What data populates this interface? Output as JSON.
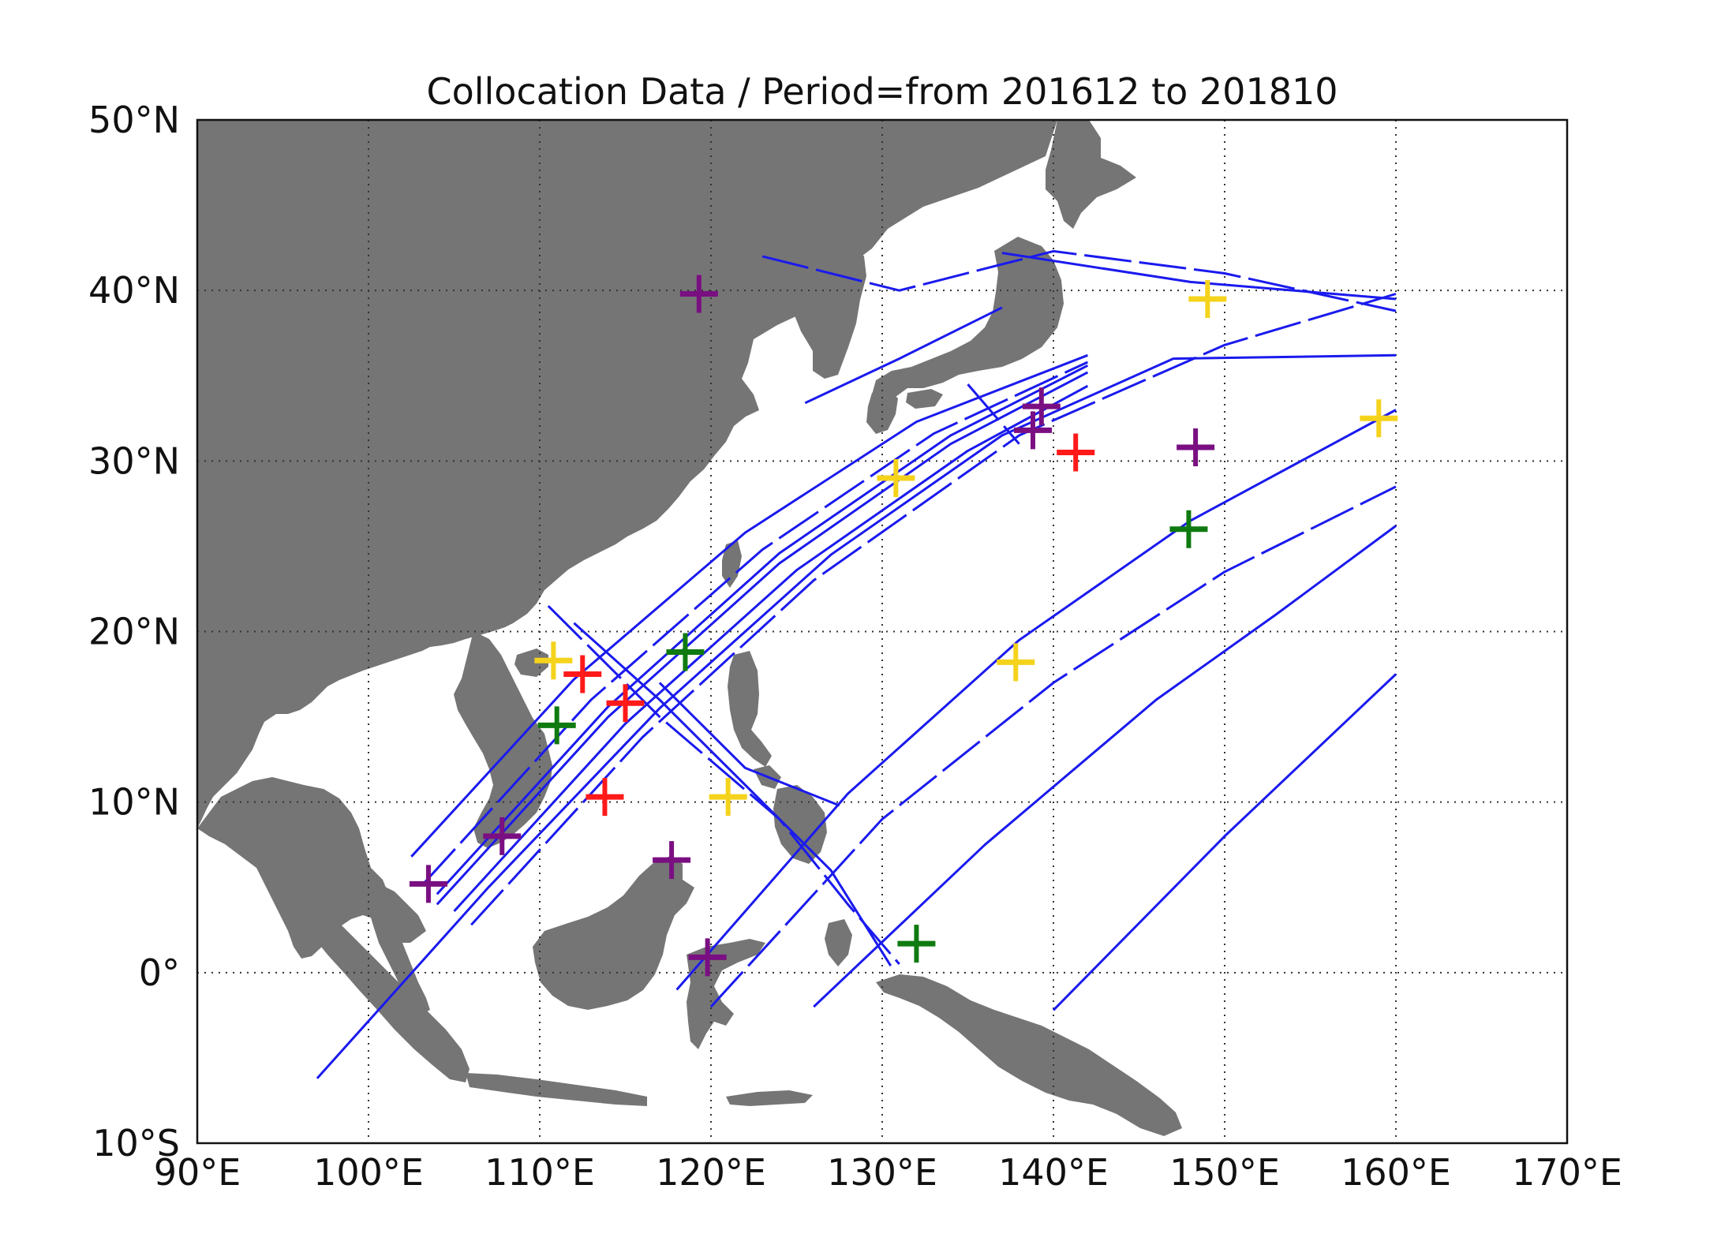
{
  "title": "Collocation Data / Period=from 201612 to 201810",
  "colors": {
    "land": "#757575",
    "ocean": "#ffffff",
    "track": "#1a1aee",
    "grid": "#333333",
    "marker_red": "#ff1a1a",
    "marker_yellow": "#f5d31c",
    "marker_purple": "#7a0f82",
    "marker_green": "#0f7a10"
  },
  "chart_data": {
    "type": "scatter",
    "map_projection": "equirectangular",
    "xlim": [
      90,
      170
    ],
    "ylim": [
      -10,
      50
    ],
    "grid": true,
    "x_ticks": [
      {
        "value": 90,
        "label": "90°E"
      },
      {
        "value": 100,
        "label": "100°E"
      },
      {
        "value": 110,
        "label": "110°E"
      },
      {
        "value": 120,
        "label": "120°E"
      },
      {
        "value": 130,
        "label": "130°E"
      },
      {
        "value": 140,
        "label": "140°E"
      },
      {
        "value": 150,
        "label": "150°E"
      },
      {
        "value": 160,
        "label": "160°E"
      },
      {
        "value": 170,
        "label": "170°E"
      }
    ],
    "y_ticks": [
      {
        "value": -10,
        "label": "10°S"
      },
      {
        "value": 0,
        "label": "0°"
      },
      {
        "value": 10,
        "label": "10°N"
      },
      {
        "value": 20,
        "label": "20°N"
      },
      {
        "value": 30,
        "label": "30°N"
      },
      {
        "value": 40,
        "label": "40°N"
      },
      {
        "value": 50,
        "label": "50°N"
      }
    ],
    "markers": [
      {
        "lon": 112.5,
        "lat": 17.5,
        "color": "red"
      },
      {
        "lon": 115.0,
        "lat": 15.8,
        "color": "red"
      },
      {
        "lon": 113.8,
        "lat": 10.3,
        "color": "red"
      },
      {
        "lon": 141.3,
        "lat": 30.5,
        "color": "red"
      },
      {
        "lon": 149.0,
        "lat": 39.5,
        "color": "yellow"
      },
      {
        "lon": 159.0,
        "lat": 32.5,
        "color": "yellow"
      },
      {
        "lon": 130.8,
        "lat": 29.0,
        "color": "yellow"
      },
      {
        "lon": 137.8,
        "lat": 18.2,
        "color": "yellow"
      },
      {
        "lon": 121.0,
        "lat": 10.3,
        "color": "yellow"
      },
      {
        "lon": 110.8,
        "lat": 18.3,
        "color": "yellow"
      },
      {
        "lon": 139.3,
        "lat": 33.2,
        "color": "purple"
      },
      {
        "lon": 138.8,
        "lat": 31.8,
        "color": "purple"
      },
      {
        "lon": 148.3,
        "lat": 30.8,
        "color": "purple"
      },
      {
        "lon": 107.8,
        "lat": 8.0,
        "color": "purple"
      },
      {
        "lon": 103.5,
        "lat": 5.2,
        "color": "purple"
      },
      {
        "lon": 119.8,
        "lat": 0.9,
        "color": "purple"
      },
      {
        "lon": 117.7,
        "lat": 6.6,
        "color": "purple"
      },
      {
        "lon": 119.3,
        "lat": 39.8,
        "color": "purple"
      },
      {
        "lon": 147.9,
        "lat": 26.0,
        "color": "green"
      },
      {
        "lon": 118.5,
        "lat": 18.8,
        "color": "green"
      },
      {
        "lon": 111.0,
        "lat": 14.5,
        "color": "green"
      },
      {
        "lon": 132.0,
        "lat": 1.7,
        "color": "green"
      }
    ],
    "tracks": [
      [
        [
          104,
          4
        ],
        [
          114,
          15
        ],
        [
          124,
          24
        ],
        [
          134,
          31
        ],
        [
          142,
          35.2
        ]
      ],
      [
        [
          104,
          4.6
        ],
        [
          114,
          15.6
        ],
        [
          124,
          24.6
        ],
        [
          134,
          31.5
        ],
        [
          142,
          35.6
        ]
      ],
      [
        [
          103.2,
          5.2
        ],
        [
          113,
          16
        ],
        [
          123,
          24.8
        ],
        [
          133,
          31.6
        ],
        [
          142,
          35.8
        ]
      ],
      [
        [
          105,
          3.6
        ],
        [
          115,
          14.6
        ],
        [
          125,
          23.6
        ],
        [
          135,
          30.6
        ],
        [
          142,
          34.4
        ]
      ],
      [
        [
          102.5,
          6.8
        ],
        [
          112,
          17.2
        ],
        [
          122,
          25.8
        ],
        [
          132,
          32.3
        ],
        [
          142,
          36.2
        ]
      ],
      [
        [
          106,
          2.8
        ],
        [
          116,
          13.8
        ],
        [
          126,
          23
        ],
        [
          138,
          31.5
        ],
        [
          150,
          36.8
        ],
        [
          160,
          39.8
        ]
      ],
      [
        [
          97,
          -6.2
        ],
        [
          107,
          5
        ],
        [
          117,
          15.5
        ],
        [
          127,
          24.5
        ],
        [
          137,
          31.5
        ],
        [
          147,
          36
        ],
        [
          160,
          36.2
        ]
      ],
      [
        [
          118,
          -1
        ],
        [
          128,
          10.5
        ],
        [
          138,
          19.5
        ],
        [
          148,
          26.5
        ],
        [
          160,
          33
        ]
      ],
      [
        [
          120,
          -2
        ],
        [
          130,
          9
        ],
        [
          140,
          17
        ],
        [
          150,
          23.5
        ],
        [
          160,
          28.5
        ]
      ],
      [
        [
          126,
          -2
        ],
        [
          136,
          7.5
        ],
        [
          146,
          16
        ],
        [
          153,
          21
        ],
        [
          160,
          26.2
        ]
      ],
      [
        [
          140,
          -2.2
        ],
        [
          150,
          8
        ],
        [
          160,
          17.5
        ]
      ],
      [
        [
          110.5,
          21.5
        ],
        [
          117,
          15
        ],
        [
          124,
          9
        ],
        [
          128,
          4
        ],
        [
          131,
          0.5
        ]
      ],
      [
        [
          112,
          20.5
        ],
        [
          117,
          16
        ],
        [
          122,
          11
        ],
        [
          127,
          6
        ],
        [
          130.5,
          0.4
        ]
      ],
      [
        [
          117,
          17
        ],
        [
          122,
          12
        ],
        [
          127.5,
          9.8
        ]
      ],
      [
        [
          123,
          42
        ],
        [
          131,
          40
        ],
        [
          140,
          42.3
        ],
        [
          150,
          41
        ],
        [
          160,
          38.8
        ]
      ],
      [
        [
          137,
          42.2
        ],
        [
          148,
          40.5
        ],
        [
          160,
          39.5
        ]
      ],
      [
        [
          125.5,
          33.4
        ],
        [
          131,
          36
        ],
        [
          137,
          39
        ]
      ],
      [
        [
          135,
          34.5
        ],
        [
          138,
          31
        ]
      ]
    ]
  }
}
